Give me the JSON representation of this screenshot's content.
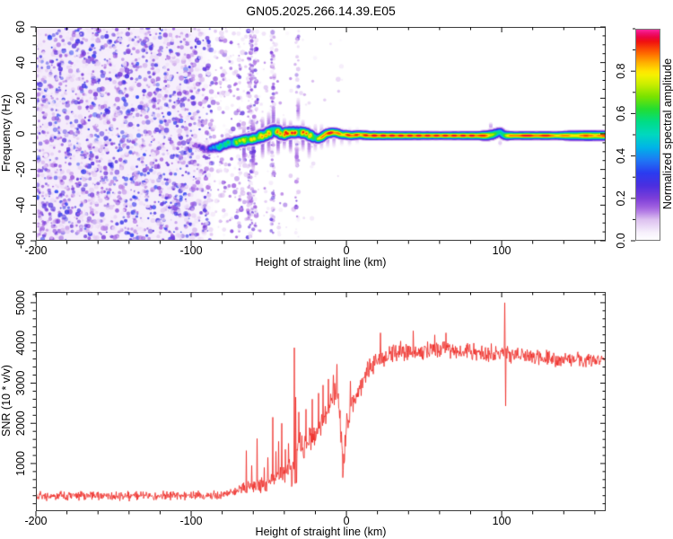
{
  "title": "GN05.2025.266.14.39.E05",
  "colors": {
    "background": "#ffffff",
    "frame": "#3a3a3a",
    "tick": "#111111",
    "snr_line": "#ee2420"
  },
  "colormap": {
    "stops": [
      [
        0.0,
        "#ffffff"
      ],
      [
        0.04,
        "#f7f0fc"
      ],
      [
        0.1,
        "#dcc0f0"
      ],
      [
        0.15,
        "#a868e2"
      ],
      [
        0.2,
        "#7d3fd9"
      ],
      [
        0.26,
        "#4b2fe0"
      ],
      [
        0.32,
        "#2b3cf0"
      ],
      [
        0.38,
        "#1f78f5"
      ],
      [
        0.44,
        "#00b4e8"
      ],
      [
        0.5,
        "#00d8c0"
      ],
      [
        0.56,
        "#00dd88"
      ],
      [
        0.62,
        "#22dd33"
      ],
      [
        0.68,
        "#7ae300"
      ],
      [
        0.74,
        "#ccee00"
      ],
      [
        0.79,
        "#fff200"
      ],
      [
        0.84,
        "#ffb000"
      ],
      [
        0.89,
        "#ff6000"
      ],
      [
        0.94,
        "#f01010"
      ],
      [
        0.97,
        "#e8005a"
      ],
      [
        1.0,
        "#ff2fa8"
      ]
    ]
  },
  "chart_data": [
    {
      "type": "heatmap",
      "name": "spectrogram",
      "xlabel": "Height of straight line (km)",
      "ylabel": "Frequency (Hz)",
      "xlim": [
        -200,
        167
      ],
      "ylim": [
        -60,
        60
      ],
      "xticks": {
        "values": [
          -200,
          -100,
          0,
          100
        ],
        "labels": [
          "-200",
          "-100",
          "0",
          "100"
        ],
        "minor_step": 20
      },
      "yticks": {
        "values": [
          -60,
          -40,
          -20,
          0,
          20,
          40,
          60
        ],
        "labels": [
          "-60",
          "-40",
          "-20",
          "0",
          "20",
          "40",
          "60"
        ],
        "minor_step": 5
      },
      "colorbar": {
        "label": "Normalized spectral amplitude",
        "range": [
          0,
          1
        ],
        "ticks": {
          "values": [
            0,
            0.2,
            0.4,
            0.6,
            0.8
          ],
          "labels": [
            "0.0",
            "0.2",
            "0.4",
            "0.6",
            "0.8"
          ],
          "minor_step": 0.1
        }
      },
      "seed": 1337,
      "noise_regions": [
        {
          "x0": -200,
          "x1": -100,
          "count": 2300,
          "imin": 0.04,
          "imax": 0.33
        },
        {
          "x0": -100,
          "x1": -86,
          "count": 280,
          "imin": 0.04,
          "imax": 0.28
        },
        {
          "x0": -86,
          "x1": -72,
          "count": 130,
          "imin": 0.04,
          "imax": 0.22
        },
        {
          "x0": -72,
          "x1": -56,
          "count": 90,
          "imin": 0.04,
          "imax": 0.25
        },
        {
          "x0": -56,
          "x1": -38,
          "count": 50,
          "imin": 0.04,
          "imax": 0.2
        },
        {
          "x0": -38,
          "x1": -20,
          "count": 20,
          "imin": 0.04,
          "imax": 0.16
        },
        {
          "x0": -20,
          "x1": -2,
          "count": 7,
          "imin": 0.04,
          "imax": 0.12
        }
      ],
      "streaks": [
        {
          "x": -62,
          "w": 3,
          "count": 160
        },
        {
          "x": -58.5,
          "w": 1.5,
          "count": 50
        },
        {
          "x": -69,
          "w": 1.5,
          "count": 40
        },
        {
          "x": -47.5,
          "w": 2.2,
          "count": 90
        },
        {
          "x": -31.5,
          "w": 1.8,
          "count": 40
        }
      ],
      "dots": [
        [
          -47,
          28,
          0.16
        ],
        [
          -45,
          23,
          0.13
        ],
        [
          -36,
          31,
          0.14
        ],
        [
          -33,
          39,
          0.12
        ],
        [
          -27,
          22,
          0.12
        ],
        [
          -57,
          41,
          0.13
        ],
        [
          -62,
          33,
          0.15
        ],
        [
          -70,
          25,
          0.14
        ],
        [
          -75,
          -35,
          0.15
        ],
        [
          -68,
          -42,
          0.13
        ],
        [
          -63,
          -30,
          0.12
        ],
        [
          -52,
          -38,
          0.1
        ],
        [
          -5,
          24,
          0.1
        ],
        [
          -14,
          19,
          0.1
        ]
      ],
      "plumes": [
        [
          -66,
          -16,
          4,
          0.22
        ],
        [
          -60,
          -20,
          8,
          0.24
        ],
        [
          -54,
          -13,
          9,
          0.22
        ],
        [
          -50,
          -11,
          12,
          0.2
        ],
        [
          -47,
          4,
          16,
          0.18
        ],
        [
          -44,
          -11,
          9,
          0.22
        ],
        [
          -40,
          -8,
          8,
          0.2
        ],
        [
          -36,
          -10,
          7,
          0.22
        ],
        [
          -32,
          -18,
          -6,
          0.16
        ],
        [
          -31,
          8,
          20,
          0.15
        ],
        [
          -28,
          -9,
          7,
          0.2
        ],
        [
          -24,
          -13,
          4,
          0.17
        ],
        [
          -20,
          -9,
          5,
          0.17
        ],
        [
          -16,
          -8,
          5,
          0.16
        ],
        [
          -12,
          -7,
          4,
          0.15
        ],
        [
          -8,
          -7,
          4,
          0.14
        ],
        [
          -3,
          -6,
          3,
          0.12
        ],
        [
          2,
          -6,
          3,
          0.12
        ],
        [
          7,
          -5,
          3,
          0.11
        ],
        [
          93,
          3,
          6,
          0.14
        ],
        [
          99,
          -6,
          -4,
          0.12
        ]
      ],
      "band": [
        [
          -101,
          -6,
          0.15
        ],
        [
          -96,
          -7,
          0.25
        ],
        [
          -90,
          -9,
          0.4
        ],
        [
          -86,
          -8,
          0.5
        ],
        [
          -82,
          -7.5,
          0.6
        ],
        [
          -78,
          -6,
          0.65
        ],
        [
          -74,
          -5,
          0.7
        ],
        [
          -70,
          -4.5,
          0.8
        ],
        [
          -66,
          -3.5,
          0.85
        ],
        [
          -62,
          -3,
          0.9
        ],
        [
          -58,
          -2.5,
          0.85
        ],
        [
          -54,
          -1,
          0.9
        ],
        [
          -50,
          0.5,
          0.92
        ],
        [
          -47,
          2.5,
          0.9
        ],
        [
          -44,
          1.5,
          0.95
        ],
        [
          -41,
          -0.5,
          0.9
        ],
        [
          -38,
          0.5,
          1.0
        ],
        [
          -34,
          1,
          1.0
        ],
        [
          -30,
          1,
          1.0
        ],
        [
          -26,
          0.5,
          0.95
        ],
        [
          -22,
          -1.5,
          0.85
        ],
        [
          -19,
          -3,
          0.8
        ],
        [
          -16,
          -2,
          0.9
        ],
        [
          -13,
          0,
          1.0
        ],
        [
          -9,
          0.8,
          1.0
        ],
        [
          -6,
          0.5,
          0.95
        ],
        [
          -3,
          -0.5,
          0.9
        ],
        [
          0,
          -0.5,
          0.95
        ],
        [
          3,
          -1,
          1.0
        ],
        [
          8,
          -0.5,
          0.95
        ],
        [
          15,
          -1,
          1.0
        ],
        [
          25,
          -1,
          1.0
        ],
        [
          35,
          -1,
          1.0
        ],
        [
          45,
          -1,
          1.0
        ],
        [
          55,
          -1,
          1.0
        ],
        [
          65,
          -1,
          1.0
        ],
        [
          75,
          -1,
          1.0
        ],
        [
          85,
          -1,
          1.0
        ],
        [
          90,
          -1,
          0.95
        ],
        [
          94,
          -0.5,
          0.8
        ],
        [
          97,
          0.5,
          0.62
        ],
        [
          99,
          1,
          0.6
        ],
        [
          101,
          -0.5,
          0.65
        ],
        [
          103,
          -1,
          0.8
        ],
        [
          106,
          -1,
          0.95
        ],
        [
          110,
          -1,
          1.0
        ],
        [
          125,
          -1,
          1.0
        ],
        [
          135,
          -1,
          0.95
        ],
        [
          142,
          -1,
          0.9
        ],
        [
          148,
          -1,
          0.92
        ],
        [
          155,
          -1,
          0.95
        ],
        [
          160,
          -1,
          0.95
        ],
        [
          167,
          -1,
          0.95
        ]
      ],
      "band_sigma": [
        [
          -101,
          2.0
        ],
        [
          -90,
          2.8
        ],
        [
          -70,
          3.3
        ],
        [
          -55,
          3.6
        ],
        [
          -40,
          3.4
        ],
        [
          -25,
          3.2
        ],
        [
          -15,
          3.0
        ],
        [
          0,
          2.8
        ],
        [
          30,
          2.6
        ],
        [
          60,
          2.4
        ],
        [
          85,
          2.6
        ],
        [
          92,
          3.2
        ],
        [
          100,
          3.2
        ],
        [
          108,
          2.5
        ],
        [
          135,
          2.5
        ],
        [
          145,
          3.0
        ],
        [
          160,
          3.2
        ],
        [
          167,
          3.0
        ]
      ]
    },
    {
      "type": "line",
      "name": "snr",
      "xlabel": "Height of straight line (km)",
      "ylabel": "SNR (10 * v/v)",
      "xlim": [
        -200,
        167
      ],
      "ylim": [
        -185,
        5267
      ],
      "xticks": {
        "values": [
          -200,
          -100,
          0,
          100
        ],
        "labels": [
          "-200",
          "-100",
          "0",
          "100"
        ],
        "minor_step": 20
      },
      "yticks": {
        "values": [
          1000,
          2000,
          3000,
          4000,
          5000
        ],
        "labels": [
          "1000",
          "2000",
          "3000",
          "4000",
          "5000"
        ],
        "minor_step": 200
      },
      "seed": 777,
      "base_points": [
        [
          -200,
          190
        ],
        [
          -150,
          195
        ],
        [
          -120,
          205
        ],
        [
          -100,
          195
        ],
        [
          -90,
          210
        ],
        [
          -80,
          230
        ],
        [
          -75,
          260
        ],
        [
          -70,
          320
        ],
        [
          -66,
          380
        ],
        [
          -62,
          420
        ],
        [
          -58,
          450
        ],
        [
          -54,
          430
        ],
        [
          -50,
          520
        ],
        [
          -47,
          640
        ],
        [
          -44,
          650
        ],
        [
          -41,
          700
        ],
        [
          -38,
          750
        ],
        [
          -35,
          900
        ],
        [
          -33,
          900
        ],
        [
          -31,
          1300
        ],
        [
          -29,
          1400
        ],
        [
          -27,
          1350
        ],
        [
          -25,
          1500
        ],
        [
          -23,
          1600
        ],
        [
          -21,
          1650
        ],
        [
          -19,
          1800
        ],
        [
          -17,
          1950
        ],
        [
          -15,
          2100
        ],
        [
          -13,
          2250
        ],
        [
          -11,
          2400
        ],
        [
          -9,
          2600
        ],
        [
          -7,
          2700
        ],
        [
          -6,
          2750
        ],
        [
          -5,
          2500
        ],
        [
          -4,
          2100
        ],
        [
          -3,
          1500
        ],
        [
          -2,
          900
        ],
        [
          -1,
          1500
        ],
        [
          0,
          2000
        ],
        [
          1,
          2200
        ],
        [
          2,
          2100
        ],
        [
          3,
          2400
        ],
        [
          5,
          2600
        ],
        [
          7,
          2800
        ],
        [
          9,
          2950
        ],
        [
          11,
          3100
        ],
        [
          13,
          3250
        ],
        [
          15,
          3350
        ],
        [
          18,
          3500
        ],
        [
          21,
          3600
        ],
        [
          24,
          3650
        ],
        [
          28,
          3700
        ],
        [
          32,
          3750
        ],
        [
          36,
          3780
        ],
        [
          40,
          3800
        ],
        [
          45,
          3780
        ],
        [
          50,
          3800
        ],
        [
          55,
          3820
        ],
        [
          60,
          3850
        ],
        [
          65,
          3830
        ],
        [
          70,
          3800
        ],
        [
          75,
          3790
        ],
        [
          80,
          3780
        ],
        [
          85,
          3760
        ],
        [
          90,
          3750
        ],
        [
          95,
          3740
        ],
        [
          100,
          3730
        ],
        [
          105,
          3700
        ],
        [
          110,
          3690
        ],
        [
          115,
          3670
        ],
        [
          120,
          3650
        ],
        [
          125,
          3640
        ],
        [
          130,
          3620
        ],
        [
          135,
          3610
        ],
        [
          140,
          3600
        ],
        [
          145,
          3590
        ],
        [
          150,
          3580
        ],
        [
          155,
          3570
        ],
        [
          160,
          3560
        ],
        [
          164,
          3580
        ],
        [
          167,
          3570
        ]
      ],
      "jitter": [
        [
          -200,
          -80,
          140
        ],
        [
          -80,
          -70,
          130
        ],
        [
          -70,
          -56,
          180
        ],
        [
          -56,
          -44,
          260
        ],
        [
          -44,
          -36,
          320
        ],
        [
          -36,
          -28,
          520
        ],
        [
          -28,
          -20,
          420
        ],
        [
          -20,
          -12,
          380
        ],
        [
          -12,
          -4,
          380
        ],
        [
          -4,
          2,
          420
        ],
        [
          2,
          10,
          360
        ],
        [
          10,
          20,
          320
        ],
        [
          20,
          40,
          280
        ],
        [
          40,
          90,
          240
        ],
        [
          90,
          100,
          260
        ],
        [
          100,
          115,
          240
        ],
        [
          115,
          167,
          220
        ]
      ],
      "spikes": [
        [
          -64.5,
          1320
        ],
        [
          -61,
          950
        ],
        [
          -57.5,
          1620
        ],
        [
          -53,
          900
        ],
        [
          -50.5,
          1150
        ],
        [
          -47.3,
          2150
        ],
        [
          -45.5,
          1300
        ],
        [
          -43.8,
          1550
        ],
        [
          -41.6,
          2000
        ],
        [
          -39.2,
          1350
        ],
        [
          -37.2,
          1500
        ],
        [
          -33.6,
          3880
        ],
        [
          -32.6,
          2650
        ],
        [
          -32.0,
          520
        ],
        [
          -30.8,
          2280
        ],
        [
          -26,
          2350
        ],
        [
          -22,
          2600
        ],
        [
          -18,
          2750
        ],
        [
          -15,
          2950
        ],
        [
          -11.5,
          3100
        ],
        [
          -8.5,
          3200
        ],
        [
          -6.2,
          3470
        ],
        [
          -2.3,
          650
        ],
        [
          2.5,
          3050
        ],
        [
          22,
          4250
        ],
        [
          43,
          4300
        ],
        [
          57,
          4200
        ],
        [
          64,
          4250
        ],
        [
          102,
          5000
        ],
        [
          102.7,
          2430
        ]
      ]
    }
  ]
}
